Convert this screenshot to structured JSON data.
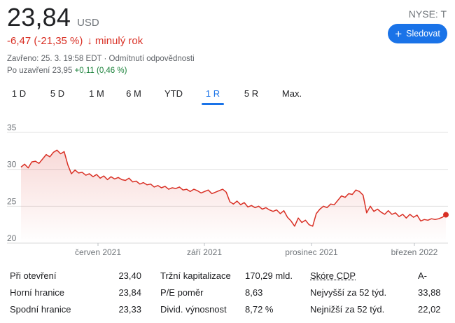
{
  "quote": {
    "price": "23,84",
    "currency": "USD",
    "ticker": "NYSE: T",
    "change": "-6,47 (-21,35 %)",
    "change_arrow": "↓",
    "period": "minulý rok",
    "closed_info": "Zavřeno: 25. 3. 19:58 EDT · Odmítnutí odpovědnosti",
    "after_hours_label": "Po uzavření 23,95",
    "after_hours_change": "+0,11 (0,46 %)"
  },
  "follow_button": {
    "icon": "plus-icon",
    "label": "Sledovat"
  },
  "tabs": [
    {
      "label": "1 D"
    },
    {
      "label": "5 D"
    },
    {
      "label": "1 M"
    },
    {
      "label": "6 M"
    },
    {
      "label": "YTD"
    },
    {
      "label": "1 R"
    },
    {
      "label": "5 R"
    },
    {
      "label": "Max."
    }
  ],
  "active_tab": "1 R",
  "colors": {
    "accent": "#1a73e8",
    "negative": "#d93025",
    "positive": "#188038",
    "line": "#d93025",
    "grid": "#e0e0e0"
  },
  "chart_data": {
    "type": "area",
    "title": "",
    "xlabel": "",
    "ylabel": "",
    "ylim": [
      20,
      35
    ],
    "yticks": [
      "35",
      "30",
      "25",
      "20"
    ],
    "xticks": [
      "červen 2021",
      "září 2021",
      "prosinec 2021",
      "březen 2022"
    ],
    "grid": true,
    "series": [
      {
        "name": "",
        "values": [
          30.3,
          30.7,
          30.2,
          31.0,
          31.1,
          30.8,
          31.4,
          32.0,
          31.7,
          32.3,
          32.6,
          32.1,
          32.4,
          30.6,
          29.4,
          29.9,
          29.5,
          29.6,
          29.2,
          29.4,
          29.0,
          29.3,
          28.8,
          29.1,
          28.6,
          29.0,
          28.7,
          28.9,
          28.6,
          28.5,
          28.8,
          28.3,
          28.4,
          28.0,
          28.2,
          27.9,
          28.0,
          27.6,
          27.8,
          27.5,
          27.7,
          27.3,
          27.5,
          27.4,
          27.6,
          27.2,
          27.3,
          27.0,
          27.3,
          27.1,
          26.8,
          27.0,
          27.2,
          26.7,
          26.9,
          27.1,
          27.3,
          26.9,
          25.6,
          25.3,
          25.7,
          25.2,
          25.5,
          24.9,
          25.1,
          24.8,
          25.0,
          24.6,
          24.8,
          24.5,
          24.3,
          24.5,
          24.0,
          24.4,
          23.5,
          23.0,
          22.3,
          23.4,
          22.8,
          23.1,
          22.5,
          22.3,
          24.0,
          24.6,
          25.0,
          24.8,
          25.3,
          25.2,
          25.8,
          26.4,
          26.2,
          26.7,
          26.6,
          27.2,
          27.0,
          26.5,
          24.1,
          25.0,
          24.3,
          24.6,
          24.2,
          23.9,
          24.4,
          23.9,
          24.1,
          23.6,
          23.9,
          23.4,
          23.9,
          23.5,
          23.8,
          23.0,
          23.2,
          23.1,
          23.3,
          23.2,
          23.3,
          23.5,
          23.84
        ]
      }
    ],
    "last_value": 23.84
  },
  "stats": [
    [
      {
        "label": "Při otevření",
        "value": "23,40"
      },
      {
        "label": "Tržní kapitalizace",
        "value": "170,29 mld."
      },
      {
        "label": "Skóre CDP",
        "value": "A-"
      }
    ],
    [
      {
        "label": "Horní hranice",
        "value": "23,84"
      },
      {
        "label": "P/E poměr",
        "value": "8,63"
      },
      {
        "label": "Nejvyšší za 52 týd.",
        "value": "33,88"
      }
    ],
    [
      {
        "label": "Spodní hranice",
        "value": "23,33"
      },
      {
        "label": "Divid. výnosnost",
        "value": "8,72 %"
      },
      {
        "label": "Nejnižší za 52 týd.",
        "value": "22,02"
      }
    ]
  ]
}
